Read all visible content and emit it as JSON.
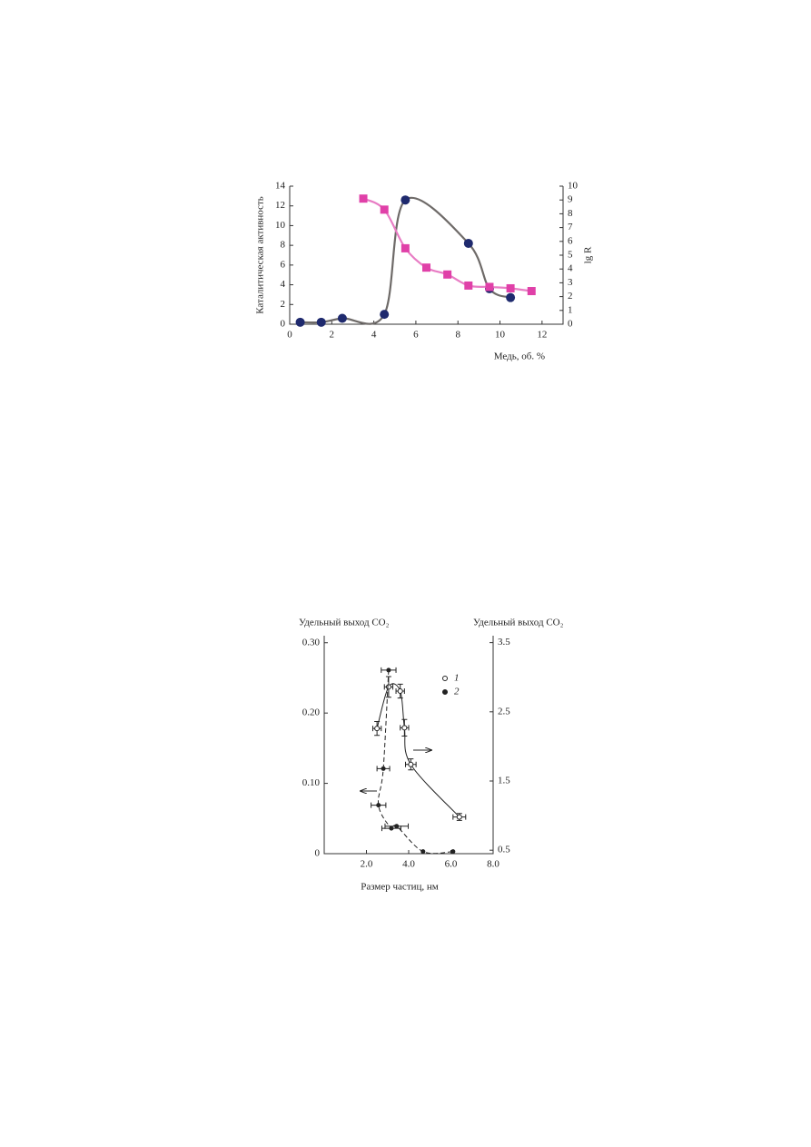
{
  "chart_data": [
    {
      "type": "scatter",
      "ylabel": "Каталитическая активность",
      "y2label": "lg R",
      "xlabel": "Медь, об. %",
      "xlim": [
        0,
        13
      ],
      "xticks": [
        0,
        2,
        4,
        6,
        8,
        10,
        12
      ],
      "ylim": [
        0,
        14
      ],
      "yticks": [
        0,
        2,
        4,
        6,
        8,
        10,
        12,
        14
      ],
      "y2lim": [
        0,
        10
      ],
      "y2ticks": [
        0,
        1,
        2,
        3,
        4,
        5,
        6,
        7,
        8,
        9,
        10
      ],
      "series": [
        {
          "color": "#1f2a6e",
          "line_color": "#6e6a68",
          "marker": "circle",
          "x": [
            0.5,
            1.5,
            2.5,
            4.5,
            5.5,
            8.5,
            9.5,
            10.5
          ],
          "values": [
            0.2,
            0.2,
            0.6,
            1.0,
            12.6,
            8.2,
            3.6,
            2.7
          ]
        },
        {
          "color": "#e040a8",
          "line_color": "#e87cc4",
          "marker": "square",
          "axis": "y2",
          "x": [
            3.5,
            4.5,
            5.5,
            6.5,
            7.5,
            8.5,
            9.5,
            10.5,
            11.5
          ],
          "values": [
            9.1,
            8.3,
            5.5,
            4.1,
            3.6,
            2.8,
            2.7,
            2.6,
            2.4
          ]
        }
      ]
    },
    {
      "type": "scatter",
      "ylabel": "Удельный выход CO₂",
      "y2label": "Удельный выход CO₂",
      "xlabel": "Размер частиц, нм",
      "xlim": [
        0,
        8
      ],
      "xticks": [
        {
          "value": 2,
          "label": "2.0"
        },
        {
          "value": 4,
          "label": "4.0"
        },
        {
          "value": 6,
          "label": "6.0"
        },
        {
          "value": 8,
          "label": "8.0"
        }
      ],
      "ylim": [
        0,
        0.31
      ],
      "yticks": [
        0,
        {
          "value": 0.1,
          "label": "0.10"
        },
        {
          "value": 0.2,
          "label": "0.20"
        },
        {
          "value": 0.3,
          "label": "0.30"
        }
      ],
      "y2lim": [
        0.45,
        3.6
      ],
      "y2ticks": [
        0.5,
        1.5,
        2.5,
        3.5
      ],
      "series": [
        {
          "name": "1",
          "color": "#222",
          "line_color": "#222",
          "marker": "open",
          "axis": "y2",
          "x": [
            2.5,
            3.05,
            3.6,
            3.8,
            4.1,
            6.4
          ],
          "values": [
            2.26,
            2.86,
            2.8,
            2.27,
            1.74,
            0.98
          ],
          "xerr": [
            0.2,
            0.2,
            0.2,
            0.2,
            0.25,
            0.3
          ],
          "yerr": [
            0.1,
            0.15,
            0.1,
            0.12,
            0.08,
            0.05
          ]
        },
        {
          "name": "2",
          "color": "#222",
          "line_color": "#222",
          "marker": "filled",
          "dashed": true,
          "x": [
            3.05,
            2.8,
            2.57,
            3.18,
            3.43,
            4.68,
            6.1
          ],
          "values": [
            0.261,
            0.121,
            0.069,
            0.036,
            0.039,
            0.003,
            0.003
          ],
          "xerr": [
            0.35,
            0.3,
            0.35,
            0.45,
            0.55,
            0,
            0
          ]
        }
      ]
    }
  ]
}
